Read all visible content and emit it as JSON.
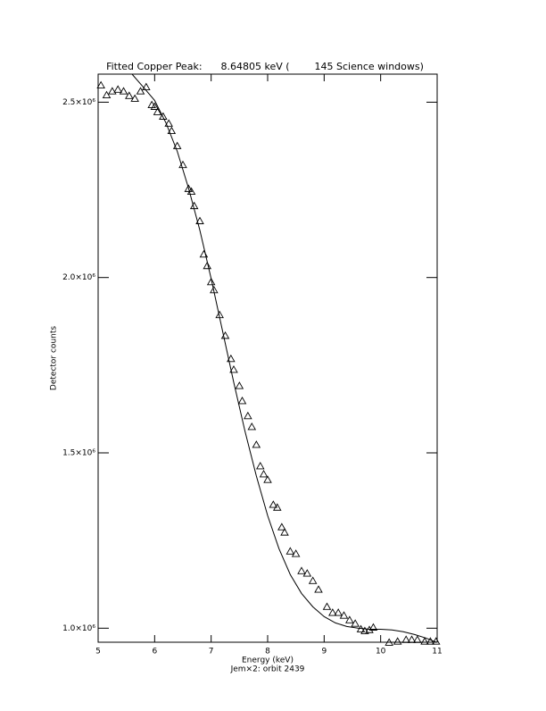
{
  "chart_data": {
    "type": "scatter",
    "title": "Fitted Copper Peak:      8.64805 keV (        145 Science windows)",
    "x_label": "Energy (keV)",
    "subtitle": "Jem×2: orbit 2439",
    "y_label": "Detector counts",
    "xlim": [
      5,
      11
    ],
    "xticks": [
      5,
      6,
      7,
      8,
      9,
      10,
      11
    ],
    "ylim": [
      960000,
      2580000
    ],
    "yticks": [
      {
        "value": 1000000,
        "label": "1.0×10⁶"
      },
      {
        "value": 1500000,
        "label": "1.5×10⁶"
      },
      {
        "value": 2000000,
        "label": "2.0×10⁶"
      },
      {
        "value": 2500000,
        "label": "2.5×10⁶"
      }
    ],
    "color": "#000000",
    "series": [
      {
        "type": "scatter",
        "x": [
          5.05,
          5.15,
          5.25,
          5.35,
          5.45,
          5.55,
          5.65,
          5.75,
          5.85,
          5.95,
          6.0,
          6.05,
          6.15,
          6.25,
          6.3,
          6.4,
          6.5,
          6.6,
          6.65,
          6.7,
          6.8,
          6.87,
          6.93,
          7.0,
          7.05,
          7.15,
          7.25,
          7.35,
          7.4,
          7.5,
          7.55,
          7.65,
          7.72,
          7.8,
          7.87,
          7.93,
          8.0,
          8.1,
          8.17,
          8.25,
          8.3,
          8.4,
          8.5,
          8.6,
          8.7,
          8.8,
          8.9,
          9.05,
          9.15,
          9.25,
          9.35,
          9.45,
          9.55,
          9.65,
          9.72,
          9.8,
          9.87,
          10.15,
          10.3,
          10.45,
          10.55,
          10.65,
          10.78,
          10.88,
          10.98
        ],
        "values": [
          2548000,
          2520000,
          2531000,
          2536000,
          2531000,
          2518000,
          2510000,
          2531000,
          2543000,
          2492000,
          2487000,
          2472000,
          2459000,
          2439000,
          2418000,
          2375000,
          2321000,
          2253000,
          2245000,
          2204000,
          2161000,
          2066000,
          2033000,
          1987000,
          1964000,
          1893000,
          1834000,
          1768000,
          1737000,
          1691000,
          1648000,
          1605000,
          1574000,
          1523000,
          1462000,
          1439000,
          1423000,
          1352000,
          1344000,
          1288000,
          1273000,
          1219000,
          1212000,
          1163000,
          1156000,
          1135000,
          1110000,
          1061000,
          1044000,
          1044000,
          1036000,
          1023000,
          1013000,
          997000,
          992000,
          995000,
          1002000,
          959000,
          962000,
          967000,
          967000,
          967000,
          962000,
          962000,
          962000
        ]
      },
      {
        "type": "line",
        "x": [
          5.6,
          5.8,
          6.0,
          6.2,
          6.4,
          6.6,
          6.8,
          7.0,
          7.2,
          7.4,
          7.6,
          7.8,
          8.0,
          8.2,
          8.4,
          8.6,
          8.8,
          9.0,
          9.2,
          9.4,
          9.6,
          9.8,
          10.0,
          10.2,
          10.4,
          10.6,
          10.8,
          11.0
        ],
        "values": [
          2580000,
          2543000,
          2505000,
          2441000,
          2360000,
          2255000,
          2135000,
          1997000,
          1849000,
          1701000,
          1561000,
          1434000,
          1321000,
          1227000,
          1153000,
          1099000,
          1061000,
          1033000,
          1015000,
          1005000,
          1000000,
          997000,
          997000,
          995000,
          990000,
          982000,
          972000,
          959000
        ]
      }
    ]
  }
}
